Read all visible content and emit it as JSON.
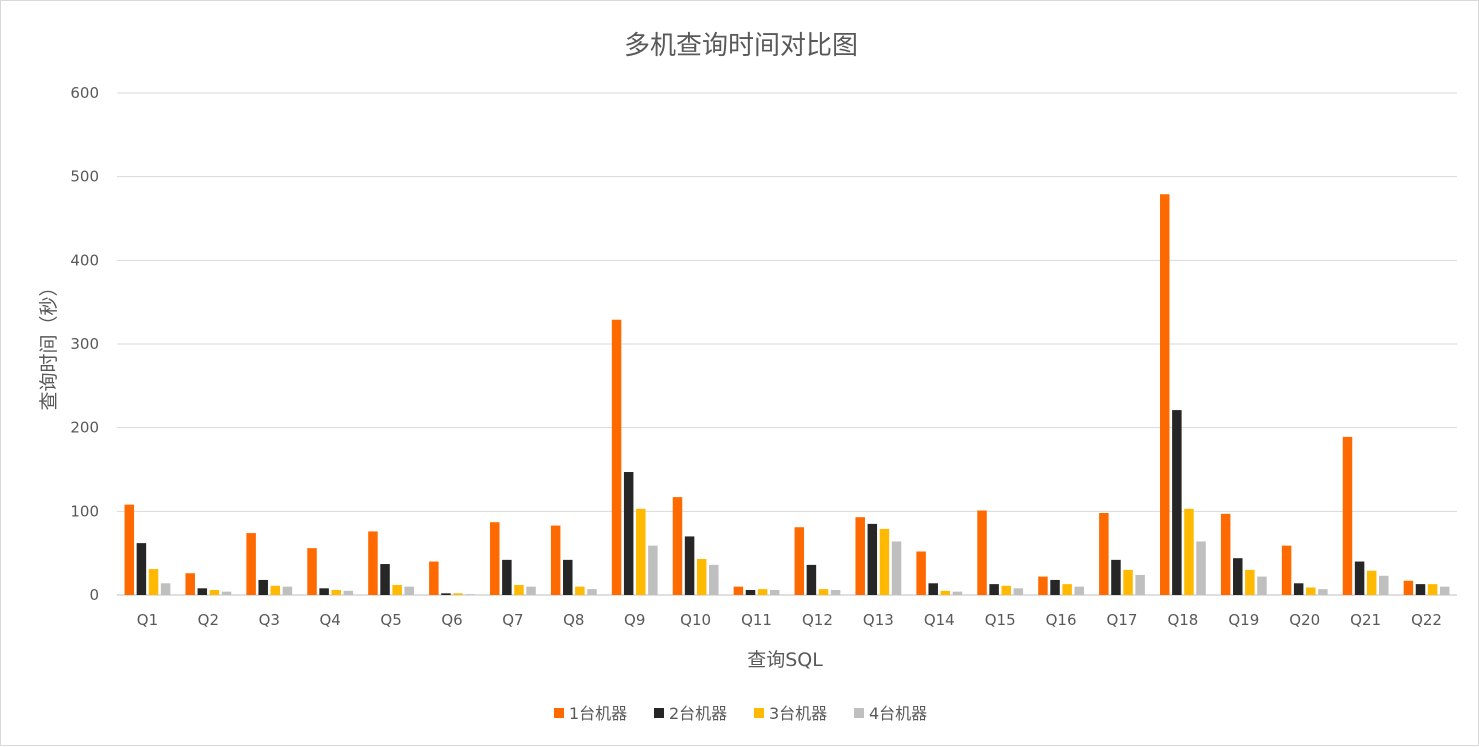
{
  "chart_data": {
    "type": "bar",
    "title": "多机查询时间对比图",
    "xlabel": "查询SQL",
    "ylabel": "查询时间（秒）",
    "ylim": [
      0,
      600
    ],
    "yticks": [
      0,
      100,
      200,
      300,
      400,
      500,
      600
    ],
    "grid": true,
    "legend_position": "bottom",
    "categories": [
      "Q1",
      "Q2",
      "Q3",
      "Q4",
      "Q5",
      "Q6",
      "Q7",
      "Q8",
      "Q9",
      "Q10",
      "Q11",
      "Q12",
      "Q13",
      "Q14",
      "Q15",
      "Q16",
      "Q17",
      "Q18",
      "Q19",
      "Q20",
      "Q21",
      "Q22"
    ],
    "series": [
      {
        "name": "1台机器",
        "color": "#ff6a00",
        "values": [
          108,
          26,
          74,
          56,
          76,
          40,
          87,
          83,
          329,
          117,
          10,
          81,
          93,
          52,
          101,
          22,
          98,
          479,
          97,
          59,
          189,
          17
        ]
      },
      {
        "name": "2台机器",
        "color": "#262626",
        "values": [
          62,
          8,
          18,
          8,
          37,
          2,
          42,
          42,
          147,
          70,
          6,
          36,
          85,
          14,
          13,
          18,
          42,
          221,
          44,
          14,
          40,
          13
        ]
      },
      {
        "name": "3台机器",
        "color": "#ffb900",
        "values": [
          31,
          6,
          11,
          6,
          12,
          2,
          12,
          10,
          103,
          43,
          7,
          7,
          79,
          5,
          11,
          13,
          30,
          103,
          30,
          9,
          29,
          13
        ]
      },
      {
        "name": "4台机器",
        "color": "#bfbfbf",
        "values": [
          14,
          4,
          10,
          5,
          10,
          1,
          10,
          7,
          59,
          36,
          6,
          6,
          64,
          4,
          8,
          10,
          24,
          64,
          22,
          7,
          23,
          10
        ]
      }
    ]
  }
}
